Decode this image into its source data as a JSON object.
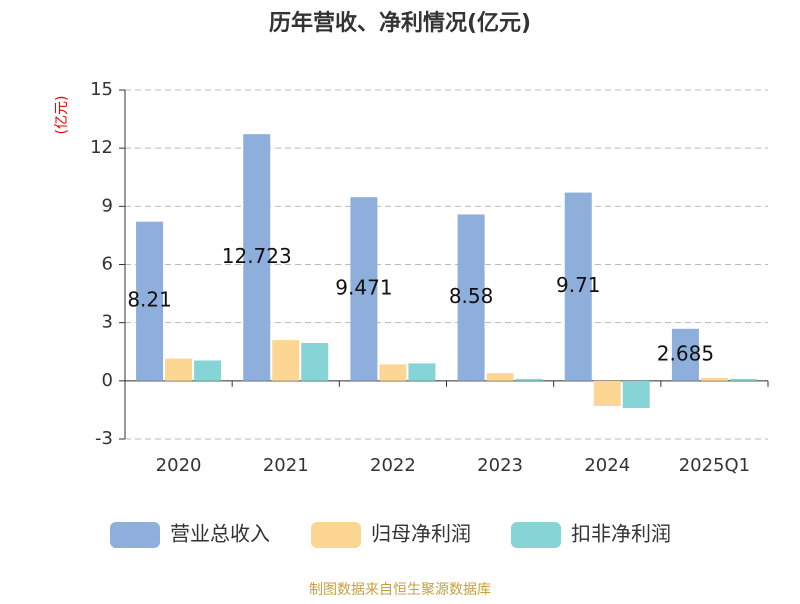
{
  "chart_data": {
    "type": "bar",
    "title": "历年营收、净利情况(亿元)",
    "y_label": "(亿元)",
    "categories": [
      "2020",
      "2021",
      "2022",
      "2023",
      "2024",
      "2025Q1"
    ],
    "series": [
      {
        "name": "营业总收入",
        "color": "#8eaedc",
        "values": [
          8.21,
          12.723,
          9.471,
          8.58,
          9.71,
          2.685
        ],
        "show_labels": true
      },
      {
        "name": "归母净利润",
        "color": "#fdd694",
        "values": [
          1.15,
          2.1,
          0.85,
          0.4,
          -1.3,
          0.15
        ],
        "show_labels": false
      },
      {
        "name": "扣非净利润",
        "color": "#86d4d6",
        "values": [
          1.05,
          1.95,
          0.9,
          0.1,
          -1.4,
          0.1
        ],
        "show_labels": false
      }
    ],
    "ylim": [
      -3,
      15
    ],
    "yticks": [
      -3,
      0,
      3,
      6,
      9,
      12,
      15
    ],
    "grid": true,
    "legend": "bottom",
    "source": "制图数据来自恒生聚源数据库"
  }
}
